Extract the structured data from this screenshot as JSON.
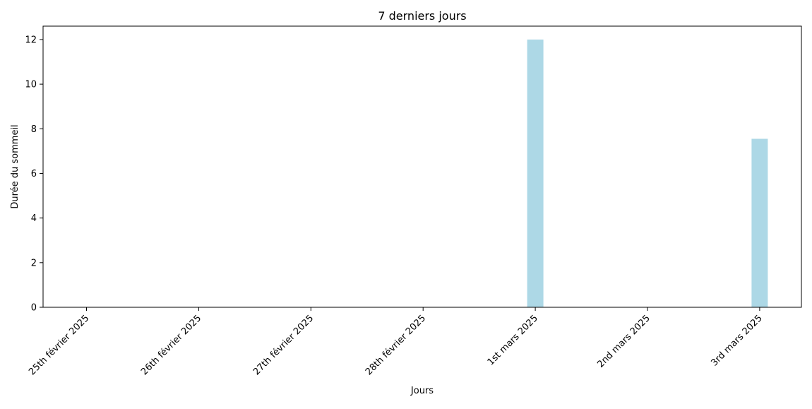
{
  "chart_data": {
    "type": "bar",
    "title": "7 derniers jours",
    "xlabel": "Jours",
    "ylabel": "Durée du sommeil",
    "categories": [
      "25th février 2025",
      "26th février 2025",
      "27th février 2025",
      "28th février 2025",
      "1st mars 2025",
      "2nd mars 2025",
      "3rd mars 2025"
    ],
    "values": [
      0,
      0,
      0,
      0,
      12,
      0,
      7.55
    ],
    "ylim": [
      0,
      12.6
    ],
    "yticks": [
      0,
      2,
      4,
      6,
      8,
      10,
      12
    ],
    "grid": false,
    "legend": "none",
    "bar_color": "#add8e6"
  }
}
